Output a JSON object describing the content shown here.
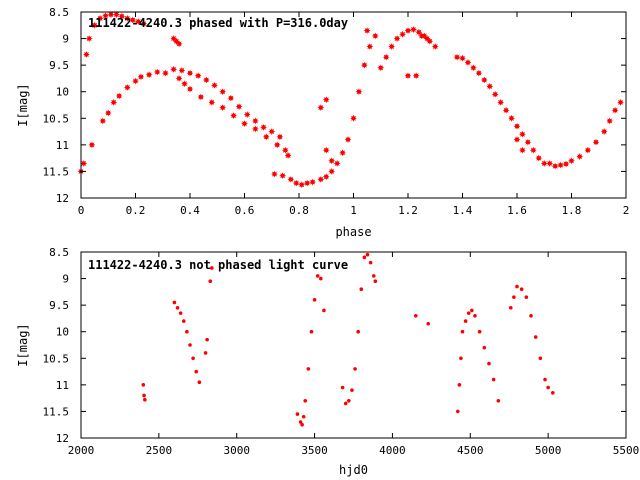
{
  "chart_data": [
    {
      "type": "scatter",
      "title": "111422-4240.3 phased with P=316.0day",
      "xlabel": "phase",
      "ylabel": "I[mag]",
      "xlim": [
        0,
        2
      ],
      "ylim": [
        12,
        8.5
      ],
      "y_inverted": true,
      "x_ticks": [
        "0",
        "0.2",
        "0.4",
        "0.6",
        "0.8",
        "1",
        "1.2",
        "1.4",
        "1.6",
        "1.8",
        "2"
      ],
      "y_ticks": [
        "8.5",
        "9",
        "9.5",
        "10",
        "10.5",
        "11",
        "11.5",
        "12"
      ],
      "marker_color": "#ff0000",
      "marker": "star",
      "grid": false,
      "series": [
        {
          "points": [
            [
              0.0,
              11.5
            ],
            [
              0.01,
              11.35
            ],
            [
              0.02,
              9.3
            ],
            [
              0.03,
              9.0
            ],
            [
              0.04,
              11.0
            ],
            [
              0.05,
              8.75
            ],
            [
              0.07,
              8.62
            ],
            [
              0.09,
              8.57
            ],
            [
              0.11,
              8.55
            ],
            [
              0.13,
              8.55
            ],
            [
              0.15,
              8.58
            ],
            [
              0.17,
              8.62
            ],
            [
              0.19,
              8.65
            ],
            [
              0.21,
              8.68
            ],
            [
              0.23,
              8.72
            ],
            [
              0.08,
              10.55
            ],
            [
              0.1,
              10.4
            ],
            [
              0.12,
              10.2
            ],
            [
              0.14,
              10.08
            ],
            [
              0.17,
              9.92
            ],
            [
              0.2,
              9.8
            ],
            [
              0.22,
              9.72
            ],
            [
              0.25,
              9.68
            ],
            [
              0.28,
              9.63
            ],
            [
              0.31,
              9.65
            ],
            [
              0.34,
              9.58
            ],
            [
              0.37,
              9.6
            ],
            [
              0.4,
              9.65
            ],
            [
              0.43,
              9.7
            ],
            [
              0.46,
              9.78
            ],
            [
              0.49,
              9.88
            ],
            [
              0.52,
              10.0
            ],
            [
              0.55,
              10.12
            ],
            [
              0.58,
              10.28
            ],
            [
              0.61,
              10.43
            ],
            [
              0.64,
              10.55
            ],
            [
              0.67,
              10.67
            ],
            [
              0.7,
              10.75
            ],
            [
              0.73,
              10.85
            ],
            [
              0.34,
              9.0
            ],
            [
              0.35,
              9.05
            ],
            [
              0.36,
              9.1
            ],
            [
              0.36,
              9.75
            ],
            [
              0.38,
              9.85
            ],
            [
              0.4,
              9.95
            ],
            [
              0.44,
              10.1
            ],
            [
              0.48,
              10.2
            ],
            [
              0.52,
              10.3
            ],
            [
              0.56,
              10.45
            ],
            [
              0.6,
              10.6
            ],
            [
              0.64,
              10.7
            ],
            [
              0.68,
              10.85
            ],
            [
              0.72,
              11.0
            ],
            [
              0.75,
              11.1
            ],
            [
              0.76,
              11.2
            ],
            [
              0.71,
              11.55
            ],
            [
              0.74,
              11.58
            ],
            [
              0.77,
              11.65
            ],
            [
              0.79,
              11.72
            ],
            [
              0.81,
              11.75
            ],
            [
              0.83,
              11.72
            ],
            [
              0.85,
              11.7
            ],
            [
              0.88,
              11.65
            ],
            [
              0.9,
              11.6
            ],
            [
              0.92,
              11.5
            ],
            [
              0.94,
              11.35
            ],
            [
              0.96,
              11.15
            ],
            [
              0.98,
              10.9
            ],
            [
              1.0,
              10.5
            ],
            [
              1.02,
              10.0
            ],
            [
              1.04,
              9.5
            ],
            [
              1.06,
              9.15
            ],
            [
              1.08,
              8.95
            ],
            [
              0.88,
              10.3
            ],
            [
              0.9,
              10.15
            ],
            [
              0.9,
              11.1
            ],
            [
              0.92,
              11.3
            ],
            [
              1.05,
              8.85
            ],
            [
              1.1,
              9.55
            ],
            [
              1.12,
              9.35
            ],
            [
              1.14,
              9.15
            ],
            [
              1.16,
              9.0
            ],
            [
              1.18,
              8.92
            ],
            [
              1.2,
              8.85
            ],
            [
              1.22,
              8.83
            ],
            [
              1.24,
              8.88
            ],
            [
              1.26,
              8.95
            ],
            [
              1.28,
              9.05
            ],
            [
              1.3,
              9.15
            ],
            [
              1.2,
              9.7
            ],
            [
              1.23,
              9.7
            ],
            [
              1.25,
              8.95
            ],
            [
              1.27,
              9.0
            ],
            [
              1.38,
              9.35
            ],
            [
              1.4,
              9.37
            ],
            [
              1.42,
              9.45
            ],
            [
              1.44,
              9.55
            ],
            [
              1.46,
              9.65
            ],
            [
              1.48,
              9.78
            ],
            [
              1.5,
              9.9
            ],
            [
              1.52,
              10.05
            ],
            [
              1.54,
              10.2
            ],
            [
              1.56,
              10.35
            ],
            [
              1.58,
              10.5
            ],
            [
              1.6,
              10.65
            ],
            [
              1.62,
              10.8
            ],
            [
              1.64,
              10.95
            ],
            [
              1.66,
              11.1
            ],
            [
              1.68,
              11.25
            ],
            [
              1.7,
              11.35
            ],
            [
              1.6,
              10.9
            ],
            [
              1.62,
              11.1
            ],
            [
              1.72,
              11.35
            ],
            [
              1.74,
              11.4
            ],
            [
              1.76,
              11.38
            ],
            [
              1.78,
              11.36
            ],
            [
              1.8,
              11.3
            ],
            [
              1.83,
              11.22
            ],
            [
              1.86,
              11.1
            ],
            [
              1.89,
              10.95
            ],
            [
              1.92,
              10.75
            ],
            [
              1.94,
              10.55
            ],
            [
              1.96,
              10.35
            ],
            [
              1.98,
              10.2
            ]
          ]
        }
      ]
    },
    {
      "type": "scatter",
      "title": "111422-4240.3 not phased light curve",
      "xlabel": "hjd0",
      "ylabel": "I[mag]",
      "xlim": [
        2000,
        5500
      ],
      "ylim": [
        12,
        8.5
      ],
      "y_inverted": true,
      "x_ticks": [
        "2000",
        "2500",
        "3000",
        "3500",
        "4000",
        "4500",
        "5000",
        "5500"
      ],
      "y_ticks": [
        "8.5",
        "9",
        "9.5",
        "10",
        "10.5",
        "11",
        "11.5",
        "12"
      ],
      "marker_color": "#ff0000",
      "marker": "dot",
      "grid": false,
      "series": [
        {
          "points": [
            [
              2400,
              11.0
            ],
            [
              2405,
              11.2
            ],
            [
              2410,
              11.28
            ],
            [
              2600,
              9.45
            ],
            [
              2620,
              9.55
            ],
            [
              2640,
              9.65
            ],
            [
              2660,
              9.8
            ],
            [
              2680,
              10.0
            ],
            [
              2700,
              10.25
            ],
            [
              2720,
              10.5
            ],
            [
              2740,
              10.75
            ],
            [
              2760,
              10.95
            ],
            [
              2800,
              10.4
            ],
            [
              2810,
              10.15
            ],
            [
              2830,
              9.05
            ],
            [
              2840,
              8.8
            ],
            [
              3390,
              11.55
            ],
            [
              3410,
              11.7
            ],
            [
              3420,
              11.75
            ],
            [
              3430,
              11.6
            ],
            [
              3440,
              11.3
            ],
            [
              3460,
              10.7
            ],
            [
              3480,
              10.0
            ],
            [
              3500,
              9.4
            ],
            [
              3520,
              8.95
            ],
            [
              3540,
              9.0
            ],
            [
              3560,
              9.6
            ],
            [
              3680,
              11.05
            ],
            [
              3700,
              11.35
            ],
            [
              3720,
              11.3
            ],
            [
              3740,
              11.1
            ],
            [
              3760,
              10.7
            ],
            [
              3780,
              10.0
            ],
            [
              3800,
              9.2
            ],
            [
              3820,
              8.6
            ],
            [
              3840,
              8.55
            ],
            [
              3860,
              8.7
            ],
            [
              3880,
              8.95
            ],
            [
              3890,
              9.05
            ],
            [
              4150,
              9.7
            ],
            [
              4230,
              9.85
            ],
            [
              4420,
              11.5
            ],
            [
              4430,
              11.0
            ],
            [
              4440,
              10.5
            ],
            [
              4450,
              10.0
            ],
            [
              4470,
              9.8
            ],
            [
              4490,
              9.65
            ],
            [
              4510,
              9.6
            ],
            [
              4530,
              9.7
            ],
            [
              4560,
              10.0
            ],
            [
              4590,
              10.3
            ],
            [
              4620,
              10.6
            ],
            [
              4650,
              10.9
            ],
            [
              4680,
              11.3
            ],
            [
              4760,
              9.55
            ],
            [
              4780,
              9.35
            ],
            [
              4800,
              9.15
            ],
            [
              4830,
              9.2
            ],
            [
              4860,
              9.35
            ],
            [
              4890,
              9.7
            ],
            [
              4920,
              10.1
            ],
            [
              4950,
              10.5
            ],
            [
              4980,
              10.9
            ],
            [
              5000,
              11.05
            ],
            [
              5030,
              11.15
            ]
          ]
        }
      ]
    }
  ]
}
